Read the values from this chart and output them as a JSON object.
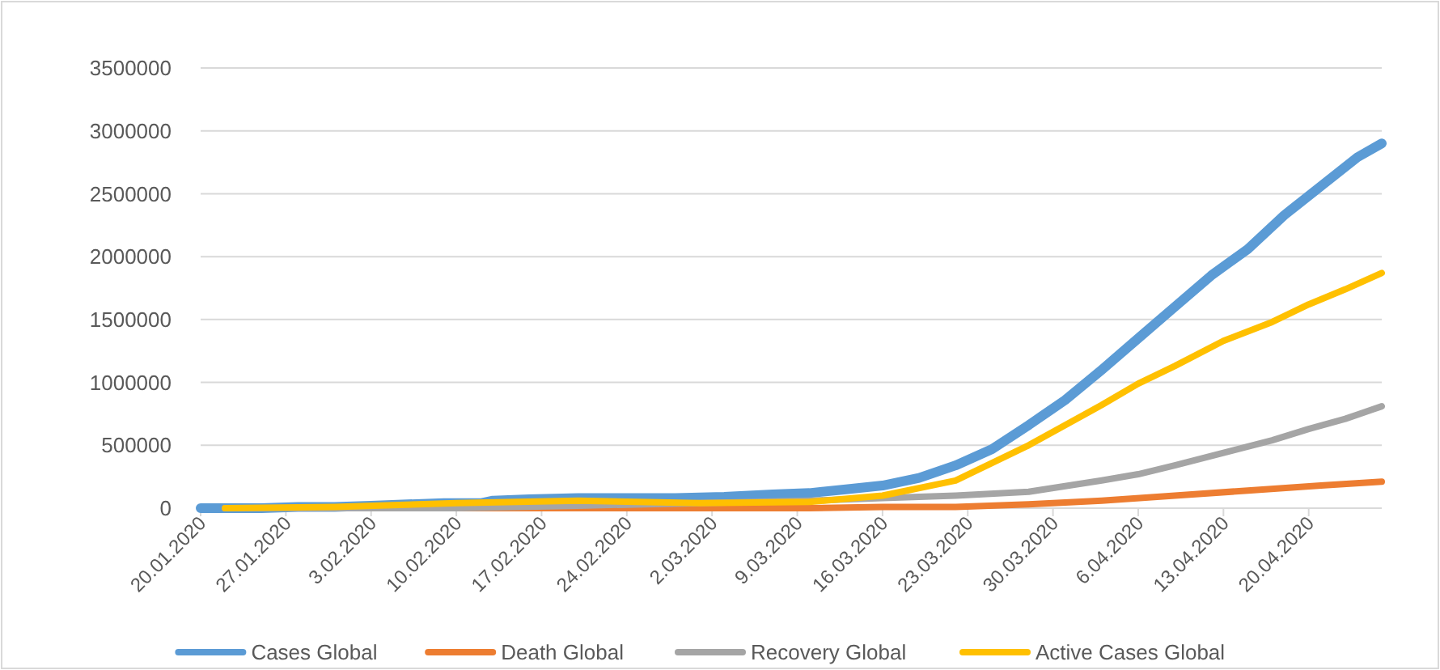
{
  "chart_data": {
    "type": "line",
    "xlim": [
      "2020-01-20",
      "2020-04-26"
    ],
    "xticks": [
      {
        "value": "2020-01-20",
        "label": "20.01.2020"
      },
      {
        "value": "2020-01-27",
        "label": "27.01.2020"
      },
      {
        "value": "2020-02-03",
        "label": "3.02.2020"
      },
      {
        "value": "2020-02-10",
        "label": "10.02.2020"
      },
      {
        "value": "2020-02-17",
        "label": "17.02.2020"
      },
      {
        "value": "2020-02-24",
        "label": "24.02.2020"
      },
      {
        "value": "2020-03-02",
        "label": "2.03.2020"
      },
      {
        "value": "2020-03-09",
        "label": "9.03.2020"
      },
      {
        "value": "2020-03-16",
        "label": "16.03.2020"
      },
      {
        "value": "2020-03-23",
        "label": "23.03.2020"
      },
      {
        "value": "2020-03-30",
        "label": "30.03.2020"
      },
      {
        "value": "2020-04-06",
        "label": "6.04.2020"
      },
      {
        "value": "2020-04-13",
        "label": "13.04.2020"
      },
      {
        "value": "2020-04-20",
        "label": "20.04.2020"
      }
    ],
    "ylim": [
      0,
      3500000
    ],
    "yticks": [
      0,
      500000,
      1000000,
      1500000,
      2000000,
      2500000,
      3000000,
      3500000
    ],
    "grid": "y",
    "legend": "bottom",
    "marker": "none",
    "line_style": "solid",
    "series": [
      {
        "name": "Cases Global",
        "color": "#5b9bd5",
        "x": [
          "2020-01-20",
          "2020-01-22",
          "2020-01-25",
          "2020-01-28",
          "2020-01-31",
          "2020-02-03",
          "2020-02-06",
          "2020-02-09",
          "2020-02-12",
          "2020-02-13",
          "2020-02-16",
          "2020-02-20",
          "2020-02-24",
          "2020-02-28",
          "2020-03-03",
          "2020-03-07",
          "2020-03-10",
          "2020-03-13",
          "2020-03-16",
          "2020-03-19",
          "2020-03-22",
          "2020-03-25",
          "2020-03-28",
          "2020-03-31",
          "2020-04-03",
          "2020-04-06",
          "2020-04-09",
          "2020-04-12",
          "2020-04-15",
          "2020-04-18",
          "2020-04-21",
          "2020-04-24",
          "2020-04-26"
        ],
        "values": [
          0,
          0,
          0,
          10000,
          10000,
          20000,
          30000,
          40000,
          40000,
          60000,
          70000,
          80000,
          80000,
          80000,
          90000,
          110000,
          120000,
          150000,
          180000,
          240000,
          340000,
          470000,
          660000,
          860000,
          1100000,
          1350000,
          1600000,
          1850000,
          2060000,
          2330000,
          2560000,
          2790000,
          2900000
        ]
      },
      {
        "name": "Death Global",
        "color": "#ed7d31",
        "x": [
          "2020-01-22",
          "2020-01-31",
          "2020-02-10",
          "2020-02-20",
          "2020-03-01",
          "2020-03-10",
          "2020-03-16",
          "2020-03-22",
          "2020-03-28",
          "2020-04-03",
          "2020-04-09",
          "2020-04-15",
          "2020-04-21",
          "2020-04-26"
        ],
        "values": [
          0,
          0,
          0,
          0,
          0,
          0,
          10000,
          10000,
          30000,
          60000,
          100000,
          140000,
          180000,
          210000
        ]
      },
      {
        "name": "Recovery Global",
        "color": "#a5a5a5",
        "x": [
          "2020-01-22",
          "2020-02-01",
          "2020-02-10",
          "2020-02-20",
          "2020-03-01",
          "2020-03-10",
          "2020-03-16",
          "2020-03-22",
          "2020-03-28",
          "2020-04-03",
          "2020-04-06",
          "2020-04-09",
          "2020-04-13",
          "2020-04-17",
          "2020-04-20",
          "2020-04-23",
          "2020-04-26"
        ],
        "values": [
          0,
          0,
          0,
          20000,
          40000,
          60000,
          80000,
          100000,
          130000,
          220000,
          270000,
          340000,
          440000,
          540000,
          630000,
          710000,
          810000
        ]
      },
      {
        "name": "Active Cases Global",
        "color": "#ffc000",
        "x": [
          "2020-01-22",
          "2020-01-31",
          "2020-02-10",
          "2020-02-20",
          "2020-03-01",
          "2020-03-10",
          "2020-03-16",
          "2020-03-22",
          "2020-03-28",
          "2020-04-03",
          "2020-04-06",
          "2020-04-09",
          "2020-04-13",
          "2020-04-17",
          "2020-04-20",
          "2020-04-23",
          "2020-04-26"
        ],
        "values": [
          0,
          10000,
          40000,
          60000,
          40000,
          50000,
          100000,
          220000,
          500000,
          820000,
          990000,
          1130000,
          1330000,
          1480000,
          1620000,
          1740000,
          1870000
        ]
      }
    ]
  }
}
